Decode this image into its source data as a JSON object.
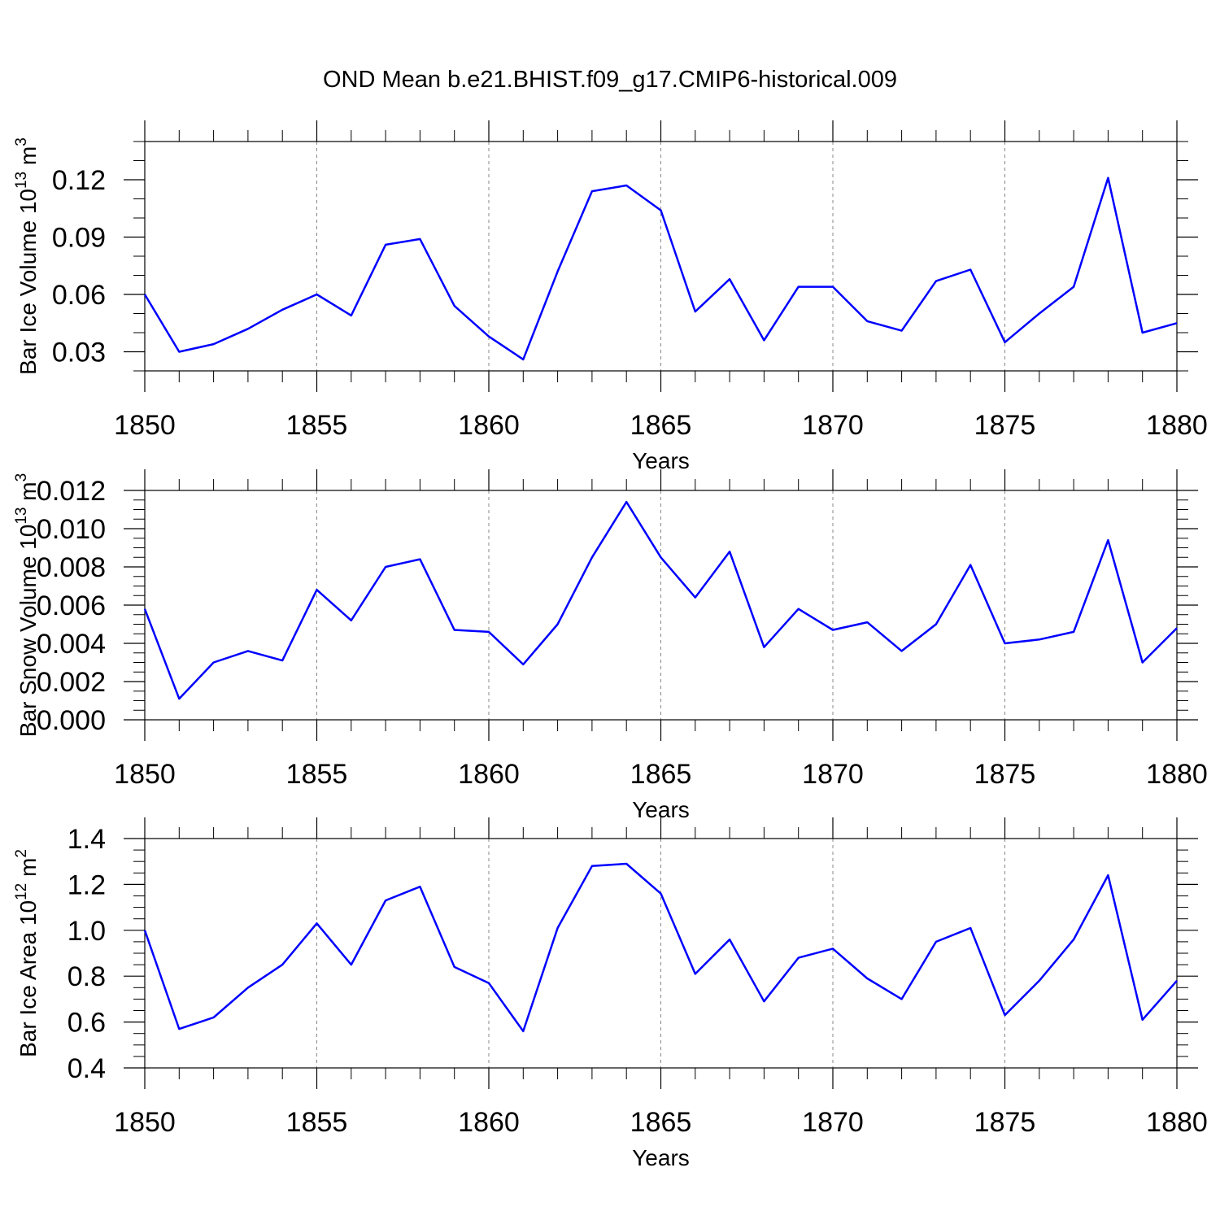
{
  "chart_title": "OND Mean b.e21.BHIST.f09_g17.CMIP6-historical.009",
  "colors": {
    "series": "#0000ff",
    "axis": "#000000",
    "grid": "#888888"
  },
  "chart_data": [
    {
      "type": "line",
      "title": "OND Mean b.e21.BHIST.f09_g17.CMIP6-historical.009",
      "xlabel": "Years",
      "ylabel": {
        "text": "Bar Ice Volume 10",
        "exp": "13",
        "unit": " m",
        "unit_exp": "3"
      },
      "xlim": [
        1850,
        1880
      ],
      "ylim": [
        0.02,
        0.14
      ],
      "xticks": [
        1850,
        1855,
        1860,
        1865,
        1870,
        1875,
        1880
      ],
      "xtick_labels": [
        "1850",
        "1855",
        "1860",
        "1865",
        "1870",
        "1875",
        "1880"
      ],
      "yticks": [
        0.03,
        0.06,
        0.09,
        0.12
      ],
      "ytick_labels": [
        "0.03",
        "0.06",
        "0.09",
        "0.12"
      ],
      "yminor_step": 0.01,
      "x": [
        1850,
        1851,
        1852,
        1853,
        1854,
        1855,
        1856,
        1857,
        1858,
        1859,
        1860,
        1861,
        1862,
        1863,
        1864,
        1865,
        1866,
        1867,
        1868,
        1869,
        1870,
        1871,
        1872,
        1873,
        1874,
        1875,
        1876,
        1877,
        1878,
        1879,
        1880
      ],
      "values": [
        0.06,
        0.03,
        0.034,
        0.042,
        0.052,
        0.06,
        0.049,
        0.086,
        0.089,
        0.054,
        0.038,
        0.026,
        0.072,
        0.114,
        0.117,
        0.104,
        0.051,
        0.068,
        0.036,
        0.064,
        0.064,
        0.046,
        0.041,
        0.067,
        0.073,
        0.035,
        0.05,
        0.064,
        0.121,
        0.04,
        0.045
      ]
    },
    {
      "type": "line",
      "xlabel": "Years",
      "ylabel": {
        "text": "Bar Snow Volume 10",
        "exp": "13",
        "unit": " m",
        "unit_exp": "3"
      },
      "xlim": [
        1850,
        1880
      ],
      "ylim": [
        0.0,
        0.012
      ],
      "xticks": [
        1850,
        1855,
        1860,
        1865,
        1870,
        1875,
        1880
      ],
      "xtick_labels": [
        "1850",
        "1855",
        "1860",
        "1865",
        "1870",
        "1875",
        "1880"
      ],
      "yticks": [
        0.0,
        0.002,
        0.004,
        0.006,
        0.008,
        0.01,
        0.012
      ],
      "ytick_labels": [
        "0.000",
        "0.002",
        "0.004",
        "0.006",
        "0.008",
        "0.010",
        "0.012"
      ],
      "yminor_step": 0.0005,
      "x": [
        1850,
        1851,
        1852,
        1853,
        1854,
        1855,
        1856,
        1857,
        1858,
        1859,
        1860,
        1861,
        1862,
        1863,
        1864,
        1865,
        1866,
        1867,
        1868,
        1869,
        1870,
        1871,
        1872,
        1873,
        1874,
        1875,
        1876,
        1877,
        1878,
        1879,
        1880
      ],
      "values": [
        0.0058,
        0.0011,
        0.003,
        0.0036,
        0.0031,
        0.0068,
        0.0052,
        0.008,
        0.0084,
        0.0047,
        0.0046,
        0.0029,
        0.005,
        0.0085,
        0.0114,
        0.0085,
        0.0064,
        0.0088,
        0.0038,
        0.0058,
        0.0047,
        0.0051,
        0.0036,
        0.005,
        0.0081,
        0.004,
        0.0042,
        0.0046,
        0.0094,
        0.003,
        0.0048
      ]
    },
    {
      "type": "line",
      "xlabel": "Years",
      "ylabel": {
        "text": "Bar Ice Area 10",
        "exp": "12",
        "unit": " m",
        "unit_exp": "2"
      },
      "xlim": [
        1850,
        1880
      ],
      "ylim": [
        0.4,
        1.4
      ],
      "xticks": [
        1850,
        1855,
        1860,
        1865,
        1870,
        1875,
        1880
      ],
      "xtick_labels": [
        "1850",
        "1855",
        "1860",
        "1865",
        "1870",
        "1875",
        "1880"
      ],
      "yticks": [
        0.4,
        0.6,
        0.8,
        1.0,
        1.2,
        1.4
      ],
      "ytick_labels": [
        "0.4",
        "0.6",
        "0.8",
        "1.0",
        "1.2",
        "1.4"
      ],
      "yminor_step": 0.05,
      "x": [
        1850,
        1851,
        1852,
        1853,
        1854,
        1855,
        1856,
        1857,
        1858,
        1859,
        1860,
        1861,
        1862,
        1863,
        1864,
        1865,
        1866,
        1867,
        1868,
        1869,
        1870,
        1871,
        1872,
        1873,
        1874,
        1875,
        1876,
        1877,
        1878,
        1879,
        1880
      ],
      "values": [
        1.0,
        0.57,
        0.62,
        0.75,
        0.85,
        1.03,
        0.85,
        1.13,
        1.19,
        0.84,
        0.77,
        0.56,
        1.01,
        1.28,
        1.29,
        1.16,
        0.81,
        0.96,
        0.69,
        0.88,
        0.92,
        0.79,
        0.7,
        0.95,
        1.01,
        0.63,
        0.78,
        0.96,
        1.24,
        0.61,
        0.78
      ]
    }
  ]
}
